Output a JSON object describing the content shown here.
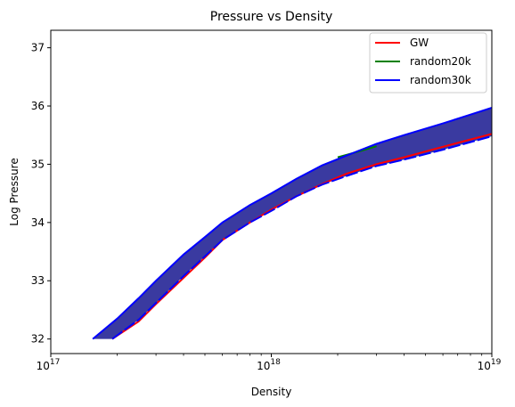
{
  "chart_data": {
    "type": "area",
    "title": "Pressure vs Density",
    "xlabel": "Density",
    "ylabel": "Log Pressure",
    "x_scale": "log",
    "xlim": [
      1e+17,
      1e+19
    ],
    "ylim": [
      31.75,
      37.3
    ],
    "grid": false,
    "legend_placement": "top-right",
    "x_ticks": [
      {
        "value": 1e+17,
        "base": "10",
        "exp": "17"
      },
      {
        "value": 1e+18,
        "base": "10",
        "exp": "18"
      },
      {
        "value": 1e+19,
        "base": "10",
        "exp": "19"
      }
    ],
    "y_ticks": [
      32,
      33,
      34,
      35,
      36,
      37
    ],
    "series": [
      {
        "name": "GW",
        "color": "#ff0000",
        "x": [
          1.9e+17,
          2.5e+17,
          3e+17,
          4e+17,
          5e+17,
          6e+17,
          8e+17,
          1e+18,
          1.3e+18,
          1.7e+18,
          2.2e+18,
          3e+18,
          4e+18,
          6e+18,
          1e+19
        ],
        "y": [
          32.0,
          32.3,
          32.6,
          33.05,
          33.4,
          33.7,
          34.0,
          34.22,
          34.45,
          34.66,
          34.84,
          35.0,
          35.12,
          35.3,
          35.52
        ]
      },
      {
        "name": "random20k",
        "color": "#008000",
        "x": [
          2e+18,
          2.5e+18,
          3e+18
        ],
        "y": [
          35.12,
          35.22,
          35.31
        ]
      },
      {
        "name": "random30k",
        "color": "#0000ff",
        "band_fill": "#3a3aa0",
        "upper": {
          "x": [
            1.55e+17,
            2e+17,
            2.5e+17,
            3e+17,
            4e+17,
            5e+17,
            6e+17,
            8e+17,
            1e+18,
            1.3e+18,
            1.7e+18,
            2.2e+18,
            3e+18,
            4e+18,
            6e+18,
            1e+19
          ],
          "y": [
            32.0,
            32.35,
            32.7,
            33.0,
            33.45,
            33.75,
            34.0,
            34.3,
            34.5,
            34.75,
            34.98,
            35.15,
            35.35,
            35.5,
            35.7,
            35.97
          ]
        },
        "lower": {
          "x": [
            1.9e+17,
            2.5e+17,
            3e+17,
            4e+17,
            5e+17,
            6e+17,
            8e+17,
            1e+18,
            1.3e+18,
            1.7e+18,
            2.2e+18,
            3e+18,
            4e+18,
            6e+18,
            1e+19
          ],
          "y": [
            32.0,
            32.33,
            32.62,
            33.08,
            33.42,
            33.7,
            34.0,
            34.2,
            34.45,
            34.65,
            34.8,
            34.97,
            35.08,
            35.25,
            35.48
          ]
        }
      }
    ]
  }
}
